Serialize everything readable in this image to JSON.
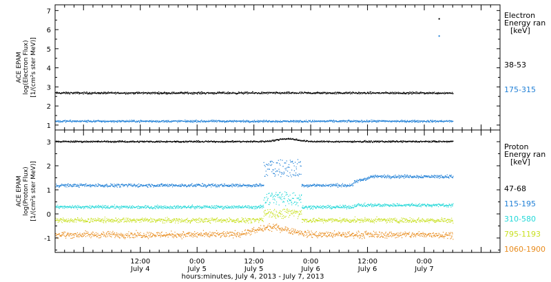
{
  "chart_data": [
    {
      "type": "scatter",
      "ylabel": [
        "ACE EPAM",
        "log(Electron Flux)",
        "[1/(cm²s ster MeV)]"
      ],
      "ylim": [
        0.85,
        7.3
      ],
      "yticks": [
        1,
        2,
        3,
        4,
        5,
        6,
        7
      ],
      "legend_title": [
        "Electron",
        "Energy ran",
        "[keV]"
      ],
      "legend_placement": "right",
      "series": [
        {
          "name": "38-53",
          "color": "#000000",
          "values_approx": {
            "baseline": 2.7,
            "jitter": 0.08
          },
          "outliers": [
            {
              "x": "2013-07-07T03:00",
              "y": 6.6
            }
          ]
        },
        {
          "name": "175-315",
          "color": "#1f7fd6",
          "values_approx": {
            "baseline": 1.22,
            "jitter": 0.08
          },
          "outliers": [
            {
              "x": "2013-07-07T03:00",
              "y": 5.7
            }
          ]
        }
      ]
    },
    {
      "type": "scatter",
      "ylabel": [
        "ACE EPAM",
        "log(Proton Flux)",
        "[1/(cm²s ster MeV)]"
      ],
      "ylim": [
        -1.6,
        3.4
      ],
      "yticks": [
        -1,
        0,
        1,
        2,
        3
      ],
      "legend_title": [
        "Proton",
        "Energy ran",
        "[keV]"
      ],
      "legend_placement": "right",
      "series": [
        {
          "name": "47-68",
          "color": "#000000",
          "values_approx": {
            "baseline": 3.02,
            "jitter": 0.05
          }
        },
        {
          "name": "115-195",
          "color": "#1f7fd6",
          "values_approx": {
            "baseline": 1.2,
            "jitter": 0.1,
            "disturbed_period": [
              "2013-07-05T14:00",
              "2013-07-05T22:00"
            ],
            "late_level": 1.55
          }
        },
        {
          "name": "310-580",
          "color": "#22d8d8",
          "values_approx": {
            "baseline": 0.3,
            "jitter": 0.1
          }
        },
        {
          "name": "795-1193",
          "color": "#c8e020",
          "values_approx": {
            "baseline": -0.25,
            "jitter": 0.15
          }
        },
        {
          "name": "1060-1900",
          "color": "#e88a1a",
          "values_approx": {
            "baseline": -0.85,
            "jitter": 0.2
          }
        }
      ]
    }
  ],
  "x_axis": {
    "range": [
      "2013-07-03T18:00",
      "2013-07-07T16:00"
    ],
    "label": "hours:minutes, July  4, 2013 - July  7, 2013",
    "data_end": "2013-07-07T06:00",
    "ticks": [
      {
        "at": "2013-07-04T12:00",
        "time": "12:00",
        "day": "July 4"
      },
      {
        "at": "2013-07-05T00:00",
        "time": "0:00",
        "day": "July 5"
      },
      {
        "at": "2013-07-05T12:00",
        "time": "12:00",
        "day": "July 5"
      },
      {
        "at": "2013-07-06T00:00",
        "time": "0:00",
        "day": "July 6"
      },
      {
        "at": "2013-07-06T12:00",
        "time": "12:00",
        "day": "July 6"
      },
      {
        "at": "2013-07-07T00:00",
        "time": "0:00",
        "day": "July 7"
      }
    ]
  }
}
